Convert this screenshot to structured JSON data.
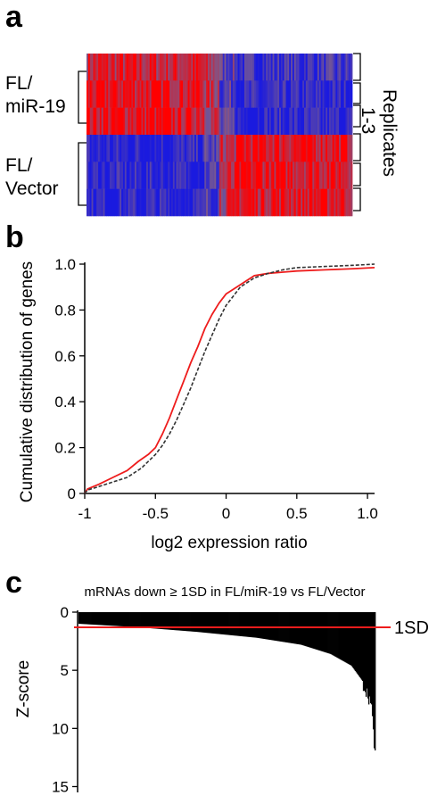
{
  "colors": {
    "heat_high": "#ff0000",
    "heat_low": "#1a1adf",
    "heat_mid": "#7a5a8f",
    "mir19_line": "#ee1c1c",
    "vector_line": "#333333",
    "threshold_line": "#ee1c1c",
    "bars": "#000000"
  },
  "chart_data": [
    {
      "type": "heatmap",
      "panel_label": "a",
      "rows": [
        "FL/miR-19 replicate 1",
        "FL/miR-19 replicate 2",
        "FL/miR-19 replicate 3",
        "FL/Vector replicate 1",
        "FL/Vector replicate 2",
        "FL/Vector replicate 3"
      ],
      "group_labels": [
        {
          "line1": "FL/",
          "line2": "miR-19"
        },
        {
          "line1": "FL/",
          "line2": "Vector"
        }
      ],
      "replicates_label": {
        "line1": "Replicates",
        "line2": "1-3"
      },
      "column_count": 160,
      "switch_column_fraction": 0.5,
      "value_range": [
        -1,
        1
      ],
      "note_pattern": "miR-19 rows high on left genes, low on right genes; Vector rows opposite"
    },
    {
      "type": "line",
      "panel_label": "b",
      "xlabel": "log2 expression ratio",
      "ylabel": "Cumulative distribution of genes",
      "xlim": [
        -1,
        1.05
      ],
      "ylim": [
        0,
        1.0
      ],
      "xticks": [
        -1,
        -0.5,
        0,
        0.5,
        1.0
      ],
      "xtick_labels": [
        "-1",
        "-0.5",
        "0",
        "0.5",
        "1.0"
      ],
      "yticks": [
        0,
        0.2,
        0.4,
        0.6,
        0.8,
        1.0
      ],
      "ytick_labels": [
        "0",
        "0.2",
        "0.4",
        "0.6",
        "0.8",
        "1.0"
      ],
      "series": [
        {
          "key": "mir19",
          "style": "solid",
          "x": [
            -1.0,
            -0.98,
            -0.9,
            -0.8,
            -0.7,
            -0.62,
            -0.55,
            -0.5,
            -0.45,
            -0.4,
            -0.35,
            -0.3,
            -0.25,
            -0.2,
            -0.15,
            -0.1,
            -0.05,
            0.0,
            0.05,
            0.1,
            0.15,
            0.2,
            0.3,
            0.4,
            0.5,
            0.7,
            0.9,
            1.05
          ],
          "y": [
            0.0,
            0.02,
            0.04,
            0.07,
            0.1,
            0.14,
            0.17,
            0.2,
            0.26,
            0.33,
            0.41,
            0.49,
            0.57,
            0.64,
            0.72,
            0.78,
            0.83,
            0.87,
            0.89,
            0.91,
            0.93,
            0.95,
            0.96,
            0.965,
            0.97,
            0.975,
            0.98,
            0.985
          ]
        },
        {
          "key": "vector",
          "style": "dashed",
          "x": [
            -1.0,
            -0.98,
            -0.9,
            -0.8,
            -0.7,
            -0.6,
            -0.5,
            -0.45,
            -0.4,
            -0.35,
            -0.3,
            -0.25,
            -0.2,
            -0.15,
            -0.1,
            -0.05,
            0.0,
            0.05,
            0.1,
            0.15,
            0.2,
            0.3,
            0.4,
            0.5,
            0.7,
            0.9,
            1.05
          ],
          "y": [
            0.0,
            0.015,
            0.03,
            0.05,
            0.07,
            0.11,
            0.17,
            0.21,
            0.26,
            0.32,
            0.39,
            0.46,
            0.54,
            0.62,
            0.69,
            0.76,
            0.82,
            0.86,
            0.9,
            0.92,
            0.94,
            0.96,
            0.975,
            0.985,
            0.99,
            0.995,
            1.0
          ]
        }
      ]
    },
    {
      "type": "bar",
      "panel_label": "c",
      "title": "mRNAs down ≥ 1SD in FL/miR-19 vs FL/Vector",
      "ylabel": "Z-score",
      "ylim": [
        0,
        15.5
      ],
      "y_inverted": true,
      "yticks": [
        0,
        5,
        10,
        15
      ],
      "ytick_labels": [
        "0",
        "5",
        "10",
        "15"
      ],
      "threshold": {
        "value": 1.3,
        "label": "1SD"
      },
      "bar_count": 330,
      "sorted_zscores_sample": {
        "rank_fraction": [
          0.0,
          0.2,
          0.4,
          0.6,
          0.75,
          0.85,
          0.92,
          0.96,
          0.99,
          1.0
        ],
        "z": [
          1.0,
          1.3,
          1.7,
          2.2,
          2.8,
          3.6,
          4.6,
          6.0,
          8.0,
          12.2
        ]
      }
    }
  ]
}
